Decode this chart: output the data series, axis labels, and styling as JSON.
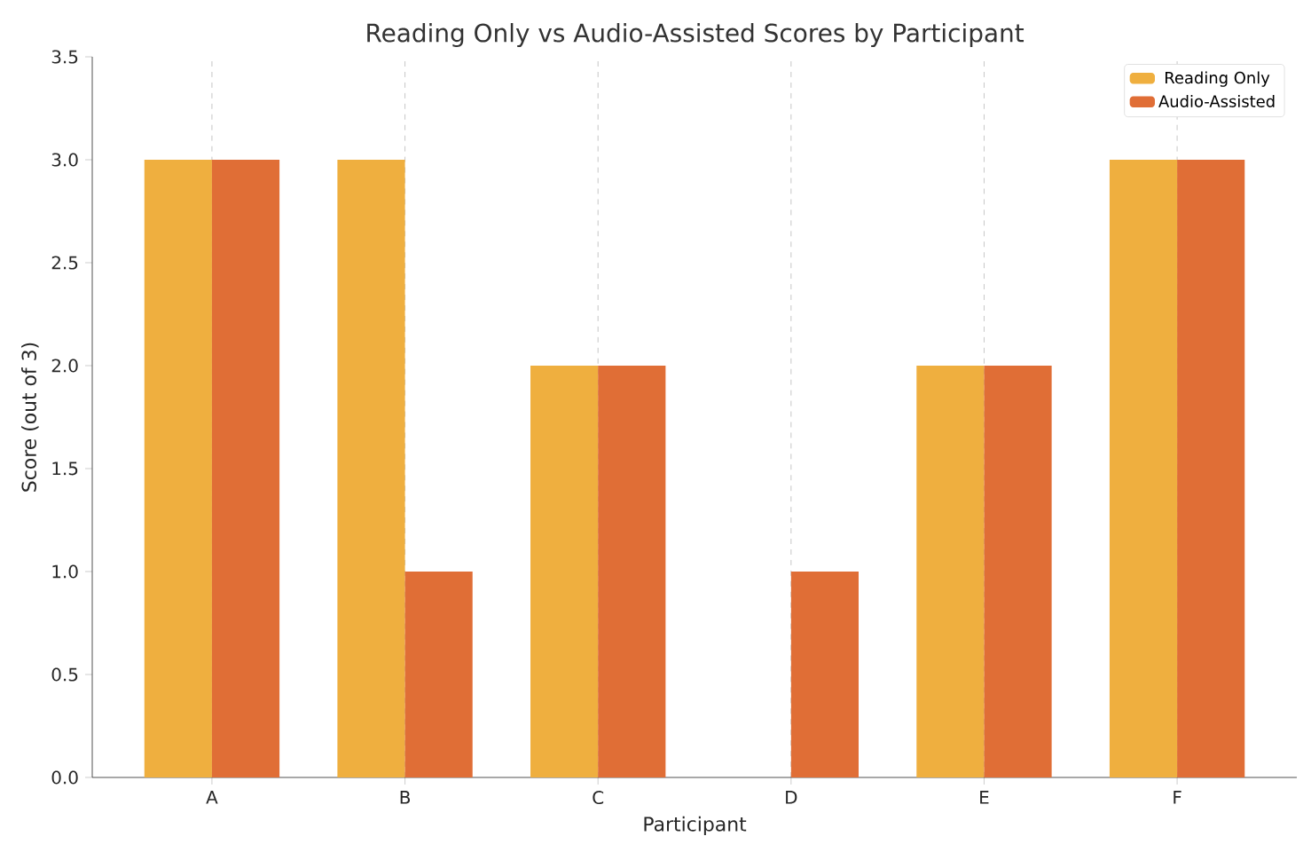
{
  "chart_data": {
    "type": "bar",
    "title": "Reading Only vs Audio-Assisted Scores by Participant",
    "xlabel": "Participant",
    "ylabel": "Score (out of 3)",
    "categories": [
      "A",
      "B",
      "C",
      "D",
      "E",
      "F"
    ],
    "series": [
      {
        "name": "Reading Only",
        "color": "#efaf3f",
        "values": [
          3,
          3,
          2,
          0,
          2,
          3
        ]
      },
      {
        "name": "Audio-Assisted",
        "color": "#e06e36",
        "values": [
          3,
          1,
          2,
          1,
          2,
          3
        ]
      }
    ],
    "ylim": [
      0,
      3.5
    ],
    "yticks": [
      {
        "value": 0,
        "label": "0.0"
      },
      {
        "value": 0.5,
        "label": "0.5"
      },
      {
        "value": 1,
        "label": "1.0"
      },
      {
        "value": 1.5,
        "label": "1.5"
      },
      {
        "value": 2,
        "label": "2.0"
      },
      {
        "value": 2.5,
        "label": "2.5"
      },
      {
        "value": 3,
        "label": "3.0"
      },
      {
        "value": 3.5,
        "label": "3.5"
      }
    ],
    "grid": "x",
    "legend": "top right"
  }
}
